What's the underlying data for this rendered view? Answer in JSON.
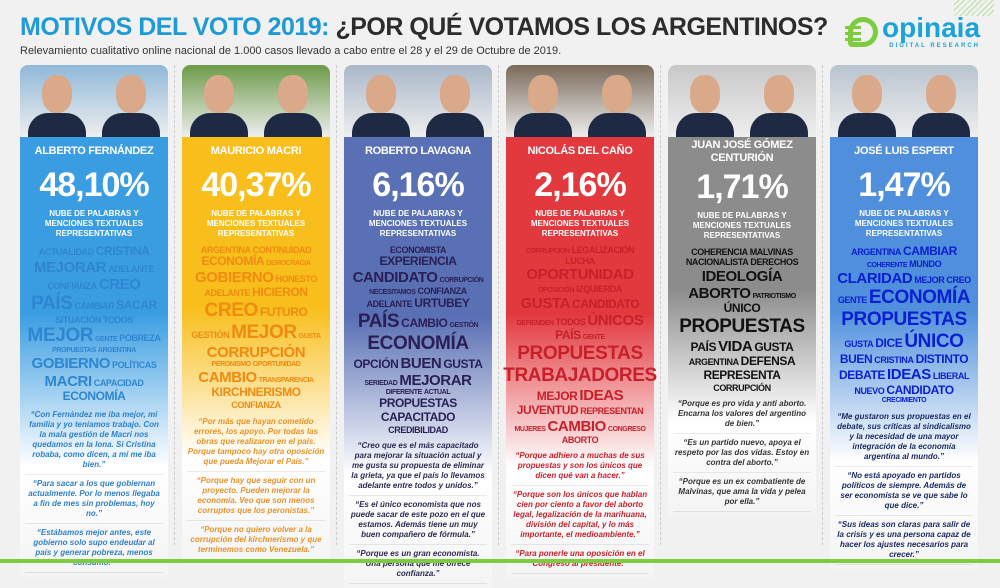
{
  "header": {
    "title_a": "MOTIVOS DEL VOTO 2019:",
    "title_b": " ¿POR QUÉ VOTAMOS LOS ARGENTINOS?",
    "subtitle": "Relevamiento cualitativo online nacional de 1.000 casos llevado a cabo entre el 28 y el 29 de Octubre de 2019."
  },
  "logo": {
    "name": "opinaia",
    "tagline": "DIGITAL RESEARCH"
  },
  "cloud_label": "Nube de palabras y menciones textuales representativas",
  "candidates": [
    {
      "name": "ALBERTO FERNÁNDEZ",
      "pct": "48,10%",
      "color": "#3a9de2",
      "text_color": "#2f80c9",
      "words": [
        [
          "ACTUALIDAD",
          2
        ],
        [
          "CRISTINA",
          3
        ],
        [
          "MEJORAR",
          4
        ],
        [
          "ADELANTE",
          2
        ],
        [
          "CONFIANZA",
          2
        ],
        [
          "CREO",
          4
        ],
        [
          "PAÍS",
          5
        ],
        [
          "CAMBIAR",
          2
        ],
        [
          "SACAR",
          3
        ],
        [
          "SITUACIÓN",
          2
        ],
        [
          "TODOS",
          2
        ],
        [
          "MEJOR",
          5
        ],
        [
          "GENTE",
          1
        ],
        [
          "POBREZA",
          2
        ],
        [
          "PROPUESTAS",
          1
        ],
        [
          "ARGENTINA",
          1
        ],
        [
          "GOBIERNO",
          4
        ],
        [
          "POLÍTICAS",
          2
        ],
        [
          "MACRI",
          4
        ],
        [
          "CAPACIDAD",
          2
        ],
        [
          "ECONOMÍA",
          3
        ]
      ],
      "quotes": [
        "“Con Fernández me iba mejor, mi familia y yo teníamos trabajo. Con la mala gestión de Macri nos quedamos en la lona. Si Cristina robaba, como dicen, a mí me iba bien.”",
        "“Para sacar a los que gobiernan actualmente. Por lo menos llegaba a fin de mes sin problemas, hoy no.”",
        "“Estábamos mejor antes, este gobierno solo supo endeudar al país y generar pobreza, menos consumo.”"
      ]
    },
    {
      "name": "MAURICIO MACRI",
      "pct": "40,37%",
      "color": "#f8bf1c",
      "text_color": "#e8922a",
      "words": [
        [
          "ARGENTINA",
          2
        ],
        [
          "CONTINUIDAD",
          2
        ],
        [
          "ECONOMÍA",
          3
        ],
        [
          "DEMOCRACIA",
          1
        ],
        [
          "GOBIERNO",
          4
        ],
        [
          "HONESTO",
          2
        ],
        [
          "ADELANTE",
          2
        ],
        [
          "HICIERON",
          3
        ],
        [
          "CREO",
          5
        ],
        [
          "FUTURO",
          3
        ],
        [
          "GESTIÓN",
          2
        ],
        [
          "MEJOR",
          5
        ],
        [
          "GUSTA",
          1
        ],
        [
          "CORRUPCIÓN",
          4
        ],
        [
          "PERONISMO",
          1
        ],
        [
          "OPORTUNIDAD",
          1
        ],
        [
          "CAMBIO",
          4
        ],
        [
          "TRANSPARENCIA",
          1
        ],
        [
          "KIRCHNERISMO",
          3
        ],
        [
          "CONFIANZA",
          2
        ]
      ],
      "quotes": [
        "“Por más que hayan cometido errores, los apoyo. Por todas las obras que realizaron en el país. Porque tampoco hay otra oposición que pueda Mejorar el País.”",
        "“Porque hay que seguir con un proyecto. Pueden mejorar la economía. Veo que son menos corruptos que los peronistas.”",
        "“Porque no quiero volver a la corrupción del kirchnerismo y que terminemos como Venezuela.”"
      ]
    },
    {
      "name": "ROBERTO LAVAGNA",
      "pct": "6,16%",
      "color": "#5a70b4",
      "text_color": "#2a2a52",
      "words": [
        [
          "ECONOMISTA",
          2
        ],
        [
          "EXPERIENCIA",
          3
        ],
        [
          "CANDIDATO",
          4
        ],
        [
          "CORRUPCIÓN",
          1
        ],
        [
          "NECESITAMOS",
          1
        ],
        [
          "CONFIANZA",
          2
        ],
        [
          "ADELANTE",
          2
        ],
        [
          "URTUBEY",
          3
        ],
        [
          "PAÍS",
          5
        ],
        [
          "CAMBIO",
          3
        ],
        [
          "GESTIÓN",
          1
        ],
        [
          "ECONOMÍA",
          5
        ],
        [
          "OPCIÓN",
          3
        ],
        [
          "BUEN",
          4
        ],
        [
          "GUSTA",
          3
        ],
        [
          "SERIEDAD",
          1
        ],
        [
          "MEJORAR",
          4
        ],
        [
          "DIFERENTE",
          1
        ],
        [
          "ACTUAL",
          1
        ],
        [
          "PROPUESTAS",
          3
        ],
        [
          "CAPACITADO",
          3
        ],
        [
          "CREDIBILIDAD",
          2
        ]
      ],
      "quotes": [
        "“Creo que es el más capacitado para mejorar la situación actual y me gusta su propuesta de eliminar la grieta, ya que el país lo llevamos adelante entre todos y unidos.”",
        "“Es el único economista que nos puede sacar de este pozo en el que estamos. Además tiene un muy buen compañero de fórmula.”",
        "“Porque es un gran economista. Una persona que me ofrece confianza.”"
      ]
    },
    {
      "name": "NICOLÁS DEL CAÑO",
      "pct": "2,16%",
      "color": "#e2393f",
      "text_color": "#c8202a",
      "words": [
        [
          "CORRUPCIÓN",
          1
        ],
        [
          "LEGALIZACIÓN",
          2
        ],
        [
          "LUCHA",
          2
        ],
        [
          "OPORTUNIDAD",
          4
        ],
        [
          "OPOSICIÓN",
          1
        ],
        [
          "IZQUIERDA",
          2
        ],
        [
          "GUSTA",
          4
        ],
        [
          "CANDIDATO",
          3
        ],
        [
          "DEFIENDEN",
          1
        ],
        [
          "TODOS",
          2
        ],
        [
          "ÚNICOS",
          4
        ],
        [
          "PAÍS",
          3
        ],
        [
          "GENTE",
          1
        ],
        [
          "PROPUESTAS",
          5
        ],
        [
          "TRABAJADORES",
          5
        ],
        [
          "MEJOR",
          3
        ],
        [
          "IDEAS",
          4
        ],
        [
          "JUVENTUD",
          3
        ],
        [
          "REPRESENTAN",
          2
        ],
        [
          "MUJERES",
          1
        ],
        [
          "CAMBIO",
          4
        ],
        [
          "CONGRESO",
          1
        ],
        [
          "ABORTO",
          2
        ]
      ],
      "quotes": [
        "“Porque adhiero a muchas de sus propuestas y son los únicos que dicen qué van a hacer.”",
        "“Porque son los únicos que hablan cien por ciento a favor del aborto legal, legalización de la marihuana, división del capital, y lo más importante, el medioambiente.”",
        "“Para ponerle una oposición en el Congreso al presidente.”"
      ]
    },
    {
      "name": "JUAN JOSÉ GÓMEZ CENTURIÓN",
      "pct": "1,71%",
      "color": "#8c8c8c",
      "text_color": "#333333",
      "words": [
        [
          "COHERENCIA",
          2
        ],
        [
          "MALVINAS",
          2
        ],
        [
          "NACIONALISTA",
          2
        ],
        [
          "DERECHOS",
          2
        ],
        [
          "IDEOLOGÍA",
          4
        ],
        [
          "ABORTO",
          4
        ],
        [
          "PATRIOTISMO",
          1
        ],
        [
          "ÚNICO",
          3
        ],
        [
          "PROPUESTAS",
          5
        ],
        [
          "PAÍS",
          3
        ],
        [
          "VIDA",
          4
        ],
        [
          "GUSTA",
          3
        ],
        [
          "ARGENTINA",
          2
        ],
        [
          "DEFENSA",
          3
        ],
        [
          "REPRESENTA",
          3
        ],
        [
          "CORRUPCIÓN",
          2
        ]
      ],
      "quotes": [
        "“Porque es pro vida y anti aborto. Encarna los valores del argentino de bien.”",
        "“Es un partido nuevo, apoya el respeto por las dos vidas. Estoy en contra del aborto.”",
        "“Porque es un ex combatiente de Malvinas, que ama la vida y pelea por ella.”"
      ]
    },
    {
      "name": "JOSÉ LUIS ESPERT",
      "pct": "1,47%",
      "color": "#4f8fdc",
      "text_color": "#1a2a62",
      "words": [
        [
          "ARGENTINA",
          2
        ],
        [
          "CAMBIAR",
          3
        ],
        [
          "COHERENTE",
          1
        ],
        [
          "MUNDO",
          2
        ],
        [
          "CLARIDAD",
          4
        ],
        [
          "MEJOR",
          2
        ],
        [
          "CREO",
          2
        ],
        [
          "GENTE",
          2
        ],
        [
          "ECONOMÍA",
          5
        ],
        [
          "PROPUESTAS",
          5
        ],
        [
          "GUSTA",
          2
        ],
        [
          "DICE",
          3
        ],
        [
          "ÚNICO",
          5
        ],
        [
          "BUEN",
          3
        ],
        [
          "CRISTINA",
          2
        ],
        [
          "DISTINTO",
          3
        ],
        [
          "DEBATE",
          3
        ],
        [
          "IDEAS",
          4
        ],
        [
          "LIBERAL",
          2
        ],
        [
          "NUEVO",
          2
        ],
        [
          "CANDIDATO",
          3
        ],
        [
          "CRECIMIENTO",
          1
        ]
      ],
      "quotes": [
        "“Me gustaron sus propuestas en el debate, sus críticas al sindicalismo y la necesidad de una mayor integración de la economía argentina al mundo.”",
        "“No está apoyado en partidos políticos de siempre. Además de ser economista se ve que sabe lo que dice.”",
        "“Sus ideas son claras para salir de la crisis y es una persona capaz de hacer los ajustes necesarios para crecer.”"
      ]
    }
  ],
  "cloud_colors": [
    "#2f86d0",
    "#f08a10",
    "#2a1f55",
    "#c8202a",
    "#111111",
    "#0a1fd0"
  ]
}
